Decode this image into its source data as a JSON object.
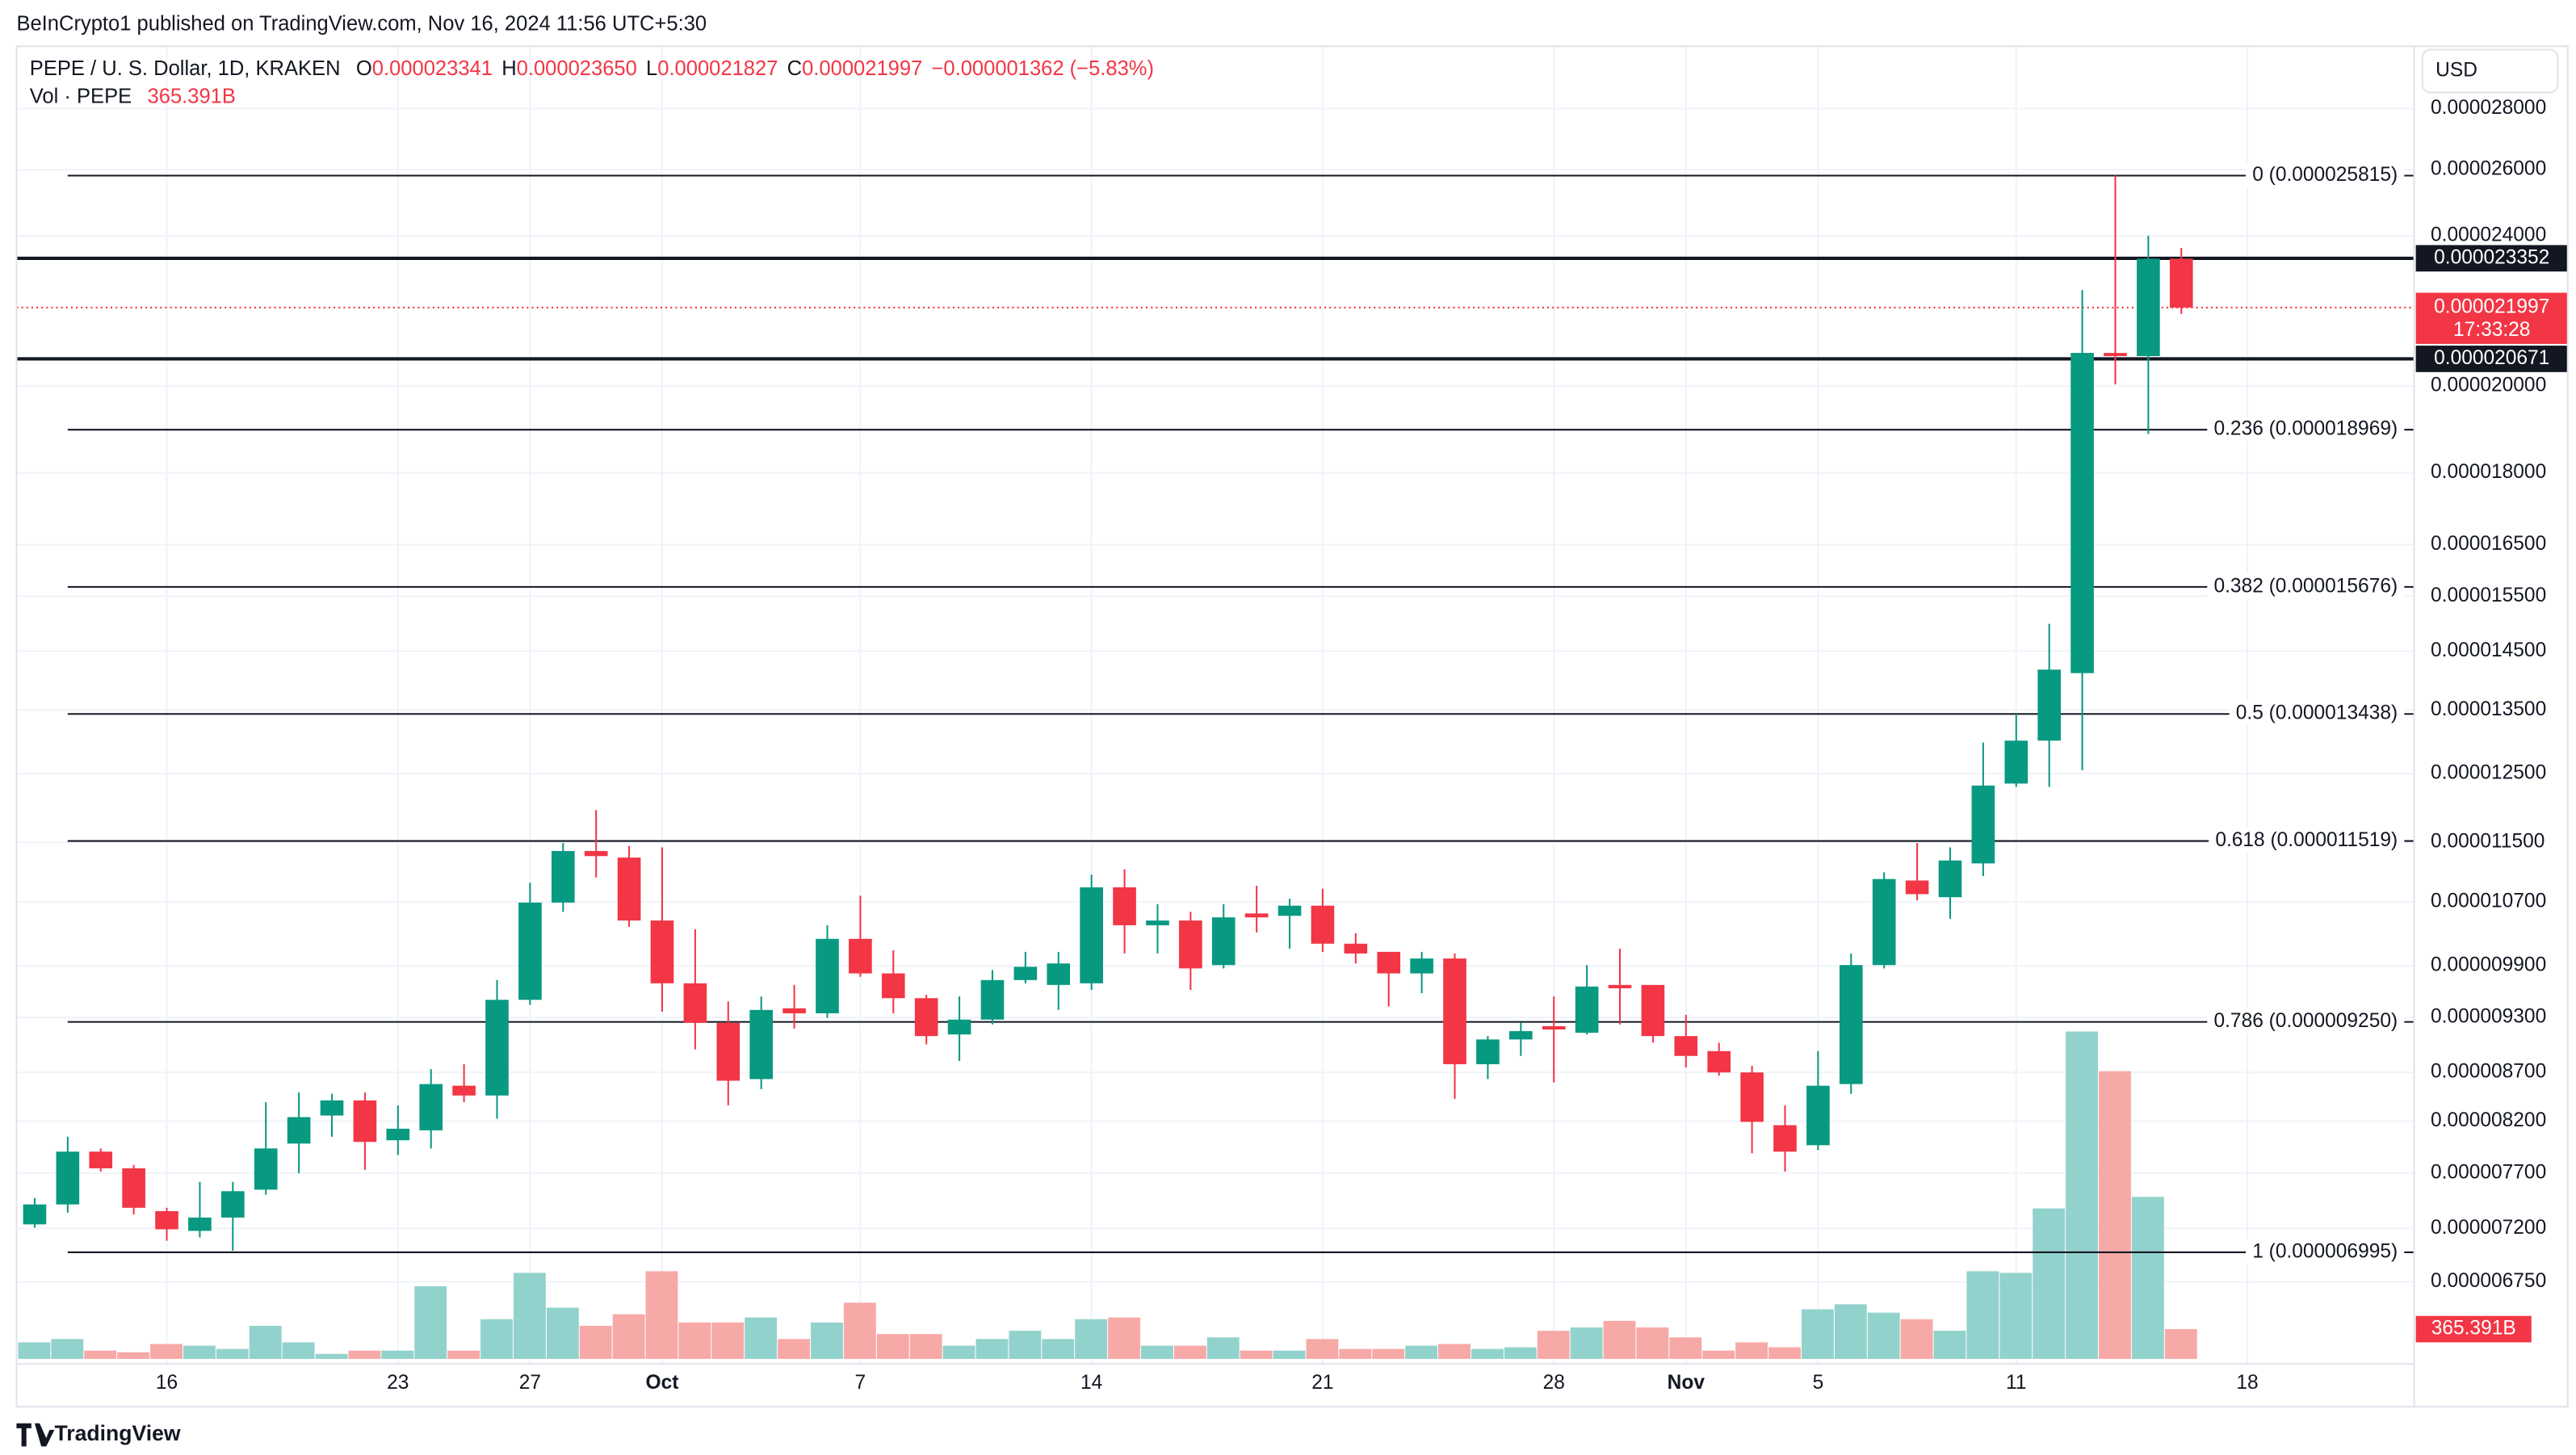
{
  "chart_data": {
    "type": "candlestick",
    "publisher": "BeInCrypto1 published on TradingView.com, Nov 16, 2024 11:56 UTC+5:30",
    "title": "PEPE / U. S. Dollar, 1D, KRAKEN",
    "legend": {
      "items": [
        {
          "key": "O",
          "value": "0.000023341"
        },
        {
          "key": "H",
          "value": "0.000023650"
        },
        {
          "key": "L",
          "value": "0.000021827"
        },
        {
          "key": "C",
          "value": "0.000021997"
        }
      ],
      "change": "−0.000001362 (−5.83%)"
    },
    "currency": "USD",
    "footer": "TradingView",
    "log_scale": true,
    "grid": true,
    "up_color": "#089981",
    "down_color": "#f23645",
    "categories": [
      null,
      null,
      null,
      null,
      "16",
      null,
      null,
      null,
      null,
      null,
      null,
      "23",
      null,
      null,
      null,
      "27",
      null,
      null,
      null,
      "Oct",
      null,
      null,
      null,
      null,
      null,
      "7",
      null,
      null,
      null,
      null,
      null,
      null,
      "14",
      null,
      null,
      null,
      null,
      null,
      null,
      "21",
      null,
      null,
      null,
      null,
      null,
      null,
      "28",
      null,
      null,
      null,
      "Nov",
      null,
      null,
      null,
      "5",
      null,
      null,
      null,
      null,
      null,
      "11",
      null,
      null,
      null,
      null,
      null,
      null,
      "18"
    ],
    "open": [
      7.236e-06,
      7.413e-06,
      7.903e-06,
      7.745e-06,
      7.353e-06,
      7.179e-06,
      7.296e-06,
      7.547e-06,
      7.981e-06,
      8.257e-06,
      8.41e-06,
      8.013e-06,
      8.11e-06,
      8.561e-06,
      8.46e-06,
      9.501e-06,
      1.069e-05,
      1.138e-05,
      1.129e-05,
      1.046e-05,
      9.693e-06,
      9.239e-06,
      8.63e-06,
      9.404e-06,
      9.347e-06,
      1.023e-05,
      9.81e-06,
      9.52e-06,
      9.11e-06,
      9.276e-06,
      9.731e-06,
      9.674e-06,
      9.693e-06,
      1.089e-05,
      1.04e-05,
      1.046e-05,
      9.91e-06,
      1.055e-05,
      1.052e-05,
      1.065e-05,
      1.017e-05,
      1.007e-05,
      9.81e-06,
      9.989e-06,
      8.787e-06,
      9.055e-06,
      9.202e-06,
      9.129e-06,
      9.674e-06,
      9.674e-06,
      9.092e-06,
      8.928e-06,
      8.7e-06,
      8.161e-06,
      7.965e-06,
      8.578e-06,
      9.91e-06,
      1.098e-05,
      1.076e-05,
      1.121e-05,
      1.235e-05,
      1.301e-05,
      1.412e-05,
      2.082e-05,
      2.074e-05,
      2.3341e-05,
      null,
      null
    ],
    "high": [
      7.471e-06,
      8.047e-06,
      7.934e-06,
      7.777e-06,
      7.383e-06,
      7.619e-06,
      7.619e-06,
      8.392e-06,
      8.491e-06,
      8.477e-06,
      8.491e-06,
      8.359e-06,
      8.735e-06,
      8.787e-06,
      9.731e-06,
      1.095e-05,
      1.149e-05,
      1.196e-05,
      1.145e-05,
      1.143e-05,
      1.035e-05,
      9.481e-06,
      9.539e-06,
      9.674e-06,
      1.04e-05,
      1.078e-05,
      1.009e-05,
      9.559e-06,
      9.539e-06,
      9.85e-06,
      1.007e-05,
      1.007e-05,
      1.106e-05,
      1.113e-05,
      1.067e-05,
      1.057e-05,
      1.067e-05,
      1.091e-05,
      1.074e-05,
      1.087e-05,
      1.03e-05,
      1.007e-05,
      1.007e-05,
      1.005e-05,
      9.092e-06,
      9.239e-06,
      9.539e-06,
      9.91e-06,
      1.011e-05,
      9.674e-06,
      9.329e-06,
      9.019e-06,
      8.77e-06,
      8.359e-06,
      8.928e-06,
      1.005e-05,
      1.109e-05,
      1.149e-05,
      1.143e-05,
      1.298e-05,
      1.344e-05,
      1.499e-05,
      2.247e-05,
      2.582e-05,
      2.4e-05,
      2.365e-05,
      null,
      null
    ],
    "low": [
      7.207e-06,
      7.339e-06,
      7.714e-06,
      7.324e-06,
      7.094e-06,
      7.122e-06,
      7.008e-06,
      7.5e-06,
      7.698e-06,
      8.047e-06,
      7.73e-06,
      7.871e-06,
      7.934e-06,
      8.392e-06,
      8.225e-06,
      9.443e-06,
      1.057e-05,
      1.102e-05,
      1.038e-05,
      9.366e-06,
      8.947e-06,
      8.359e-06,
      8.526e-06,
      9.175e-06,
      9.295e-06,
      9.77e-06,
      9.347e-06,
      9.001e-06,
      8.822e-06,
      9.221e-06,
      9.693e-06,
      9.385e-06,
      9.616e-06,
      1.005e-05,
      1.005e-05,
      9.616e-06,
      9.87e-06,
      1.031e-05,
      1.011e-05,
      1.007e-05,
      9.929e-06,
      9.424e-06,
      9.578e-06,
      8.426e-06,
      8.63e-06,
      8.876e-06,
      8.596e-06,
      9.11e-06,
      9.221e-06,
      9.019e-06,
      8.752e-06,
      8.665e-06,
      7.887e-06,
      7.714e-06,
      7.918e-06,
      8.477e-06,
      9.87e-06,
      1.072e-05,
      1.048e-05,
      1.104e-05,
      1.23e-05,
      1.23e-05,
      1.255e-05,
      2.004e-05,
      1.887e-05,
      2.1827e-05,
      null,
      null
    ],
    "close": [
      7.413e-06,
      7.903e-06,
      7.745e-06,
      7.383e-06,
      7.193e-06,
      7.296e-06,
      7.533e-06,
      7.934e-06,
      8.241e-06,
      8.41e-06,
      7.997e-06,
      8.126e-06,
      8.578e-06,
      8.46e-06,
      9.501e-06,
      1.069e-05,
      1.138e-05,
      1.131e-05,
      1.046e-05,
      9.693e-06,
      9.239e-06,
      8.613e-06,
      9.385e-06,
      9.347e-06,
      1.023e-05,
      9.81e-06,
      9.52e-06,
      9.092e-06,
      9.276e-06,
      9.731e-06,
      9.889e-06,
      9.929e-06,
      1.089e-05,
      1.04e-05,
      1.046e-05,
      9.87e-06,
      1.05e-05,
      1.05e-05,
      1.065e-05,
      1.017e-05,
      1.005e-05,
      9.81e-06,
      9.989e-06,
      8.787e-06,
      9.055e-06,
      9.147e-06,
      9.165e-06,
      9.655e-06,
      9.635e-06,
      9.092e-06,
      8.876e-06,
      8.7e-06,
      8.194e-06,
      7.903e-06,
      8.561e-06,
      9.91e-06,
      1.1e-05,
      1.08e-05,
      1.125e-05,
      1.232e-05,
      1.301e-05,
      1.418e-05,
      2.082e-05,
      2.074e-05,
      2.334e-05,
      2.1997e-05,
      null,
      null
    ],
    "ylim": [
      6.11e-06,
      3.02e-05
    ],
    "yticks": [
      {
        "value": 2.8e-05,
        "label": "0.000028000"
      },
      {
        "value": 2.6e-05,
        "label": "0.000026000"
      },
      {
        "value": 2.4e-05,
        "label": "0.000024000"
      },
      {
        "value": 2e-05,
        "label": "0.000020000"
      },
      {
        "value": 1.8e-05,
        "label": "0.000018000"
      },
      {
        "value": 1.65e-05,
        "label": "0.000016500"
      },
      {
        "value": 1.55e-05,
        "label": "0.000015500"
      },
      {
        "value": 1.45e-05,
        "label": "0.000014500"
      },
      {
        "value": 1.35e-05,
        "label": "0.000013500"
      },
      {
        "value": 1.25e-05,
        "label": "0.000012500"
      },
      {
        "value": 1.15e-05,
        "label": "0.000011500"
      },
      {
        "value": 1.07e-05,
        "label": "0.000010700"
      },
      {
        "value": 9.9e-06,
        "label": "0.000009900"
      },
      {
        "value": 9.3e-06,
        "label": "0.000009300"
      },
      {
        "value": 8.7e-06,
        "label": "0.000008700"
      },
      {
        "value": 8.2e-06,
        "label": "0.000008200"
      },
      {
        "value": 7.7e-06,
        "label": "0.000007700"
      },
      {
        "value": 7.2e-06,
        "label": "0.000007200"
      },
      {
        "value": 6.75e-06,
        "label": "0.000006750"
      }
    ],
    "fib_levels": [
      {
        "value": 2.5815e-05,
        "label": "0 (0.000025815)"
      },
      {
        "value": 1.8969e-05,
        "label": "0.236 (0.000018969)"
      },
      {
        "value": 1.5676e-05,
        "label": "0.382 (0.000015676)"
      },
      {
        "value": 1.3438e-05,
        "label": "0.5 (0.000013438)"
      },
      {
        "value": 1.1519e-05,
        "label": "0.618 (0.000011519)"
      },
      {
        "value": 9.25e-06,
        "label": "0.786 (0.000009250)"
      },
      {
        "value": 6.995e-06,
        "label": "1 (0.000006995)"
      }
    ],
    "price_levels": [
      2.3352e-05,
      2.0671e-05
    ],
    "last_price": 2.1997e-05,
    "countdown": "17:33:28",
    "volume": {
      "name": "Vol · PEPE",
      "up_color": "#92d2cc",
      "down_color": "#f7a9a7",
      "values": [
        203,
        244,
        102,
        81,
        183,
        162,
        122,
        406,
        203,
        61,
        102,
        102,
        893,
        102,
        487,
        1056,
        629,
        406,
        548,
        1076,
        447,
        447,
        508,
        244,
        447,
        690,
        305,
        305,
        162,
        244,
        345,
        244,
        487,
        508,
        162,
        162,
        264,
        102,
        102,
        244,
        122,
        122,
        162,
        183,
        122,
        142,
        345,
        386,
        467,
        386,
        264,
        102,
        203,
        142,
        609,
        670,
        568,
        487,
        345,
        1076,
        1056,
        1847,
        4019,
        3532,
        1989,
        365.391,
        null,
        null
      ],
      "last_value_label": "365.391B",
      "ylim": [
        0,
        4500
      ]
    }
  }
}
